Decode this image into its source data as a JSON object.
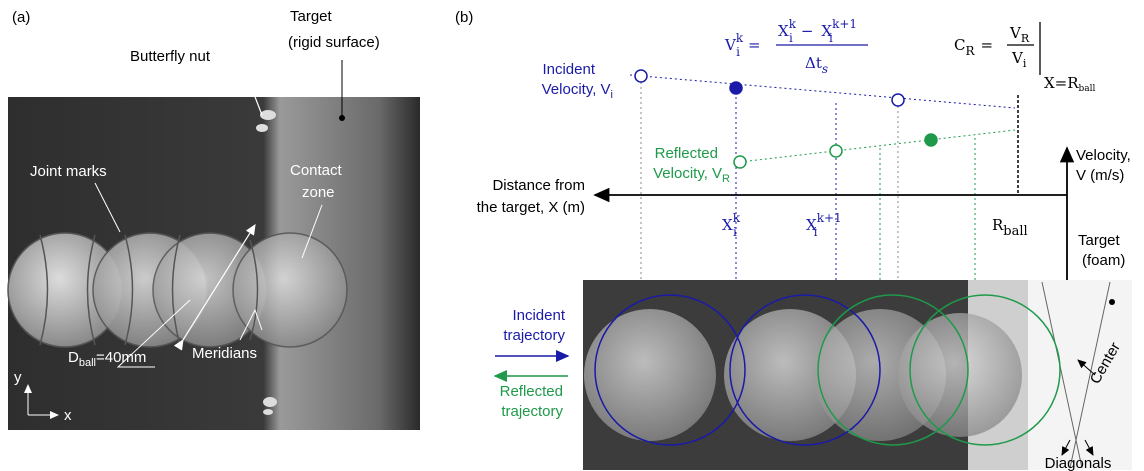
{
  "panel_a": {
    "label": "(a)",
    "butterfly_nut": "Butterfly nut",
    "target": [
      "Target",
      "(rigid surface)"
    ],
    "joint_marks": "Joint marks",
    "contact_zone": [
      "Contact",
      "zone"
    ],
    "diameter": {
      "symbol": "D",
      "subscript": "ball",
      "value": "=40mm"
    },
    "meridians": "Meridians",
    "axes": {
      "y": "y",
      "x": "x"
    }
  },
  "panel_b": {
    "label": "(b)",
    "velocity_equation": {
      "v": "V",
      "v_sub": "i",
      "v_sup": "k",
      "equals": "=",
      "x1": "X",
      "x1_sub": "i",
      "x1_sup": "k",
      "minus": "−",
      "x2": "X",
      "x2_sub": "i",
      "x2_sup": "k+1",
      "dt": "Δt",
      "dt_sub": "s"
    },
    "restitution_equation": {
      "c": "C",
      "c_sub": "R",
      "equals": "=",
      "num": "V",
      "num_sub": "R",
      "den": "V",
      "den_sub": "i",
      "eval": "X=R",
      "eval_sub": "ball"
    },
    "incident_velocity": {
      "line1": "Incident",
      "line2": "Velocity, V",
      "sub": "i"
    },
    "reflected_velocity": {
      "line1": "Reflected",
      "line2": "Velocity, V",
      "sub": "R"
    },
    "velocity_axis": [
      "Velocity,",
      "V (m/s)"
    ],
    "distance_axis": [
      "Distance from",
      "the target, X (m)"
    ],
    "x_k": {
      "symbol": "X",
      "sub": "i",
      "sup": "k"
    },
    "x_k1": {
      "symbol": "X",
      "sub": "i",
      "sup": "k+1"
    },
    "r_ball": {
      "symbol": "R",
      "sub": "ball"
    },
    "target_foam": [
      "Target",
      "(foam)"
    ],
    "incident_trajectory": [
      "Incident",
      "trajectory"
    ],
    "reflected_trajectory": [
      "Reflected",
      "trajectory"
    ],
    "center": "Center",
    "diagonals": "Diagonals"
  }
}
